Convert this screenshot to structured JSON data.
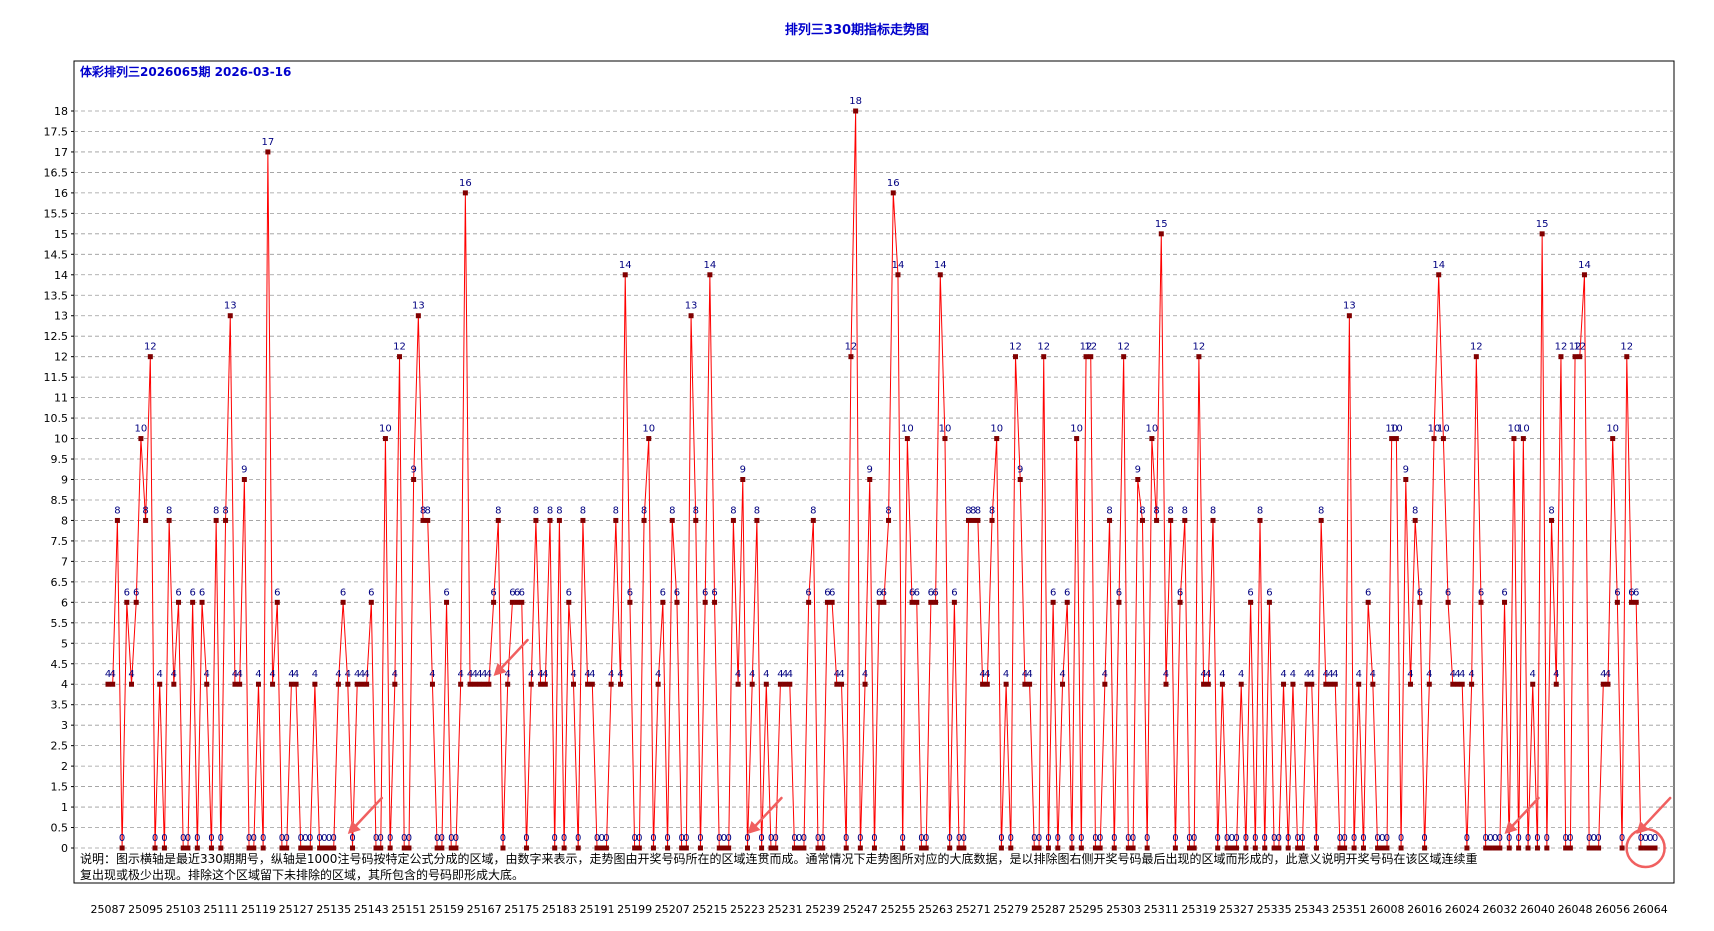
{
  "chart_data": {
    "type": "line",
    "title": "排列三330期指标走势图",
    "subtitle": "体彩排列三2026065期 2026-03-16",
    "note_line1": "说明：图示横轴是最近330期期号，纵轴是1000注号码按特定公式分成的区域，由数字来表示，走势图由开奖号码所在的区域连贯而成。通常情况下走势图所对应的大底数据，是以排除图右侧开奖号码最后出现的区域而形成的，此意义说明开奖号码在该区域连续重",
    "note_line2": "复出现或极少出现。排除这个区域留下未排除的区域，其所包含的号码即形成大底。",
    "ylim": [
      0,
      18
    ],
    "yticks": [
      "0",
      "0.5",
      "1",
      "1.5",
      "2",
      "2.5",
      "3",
      "3.5",
      "4",
      "4.5",
      "5",
      "5.5",
      "6",
      "6.5",
      "7",
      "7.5",
      "8",
      "8.5",
      "9",
      "9.5",
      "10",
      "10.5",
      "11",
      "11.5",
      "12",
      "12.5",
      "13",
      "13.5",
      "14",
      "14.5",
      "15",
      "15.5",
      "16",
      "16.5",
      "17",
      "17.5",
      "18"
    ],
    "x_tick_labels": [
      "25087",
      "25095",
      "25103",
      "25111",
      "25119",
      "25127",
      "25135",
      "25143",
      "25151",
      "25159",
      "25167",
      "25175",
      "25183",
      "25191",
      "25199",
      "25207",
      "25215",
      "25223",
      "25231",
      "25239",
      "25247",
      "25255",
      "25263",
      "25271",
      "25279",
      "25287",
      "25295",
      "25303",
      "25311",
      "25319",
      "25327",
      "25335",
      "25343",
      "25351",
      "26008",
      "26016",
      "26024",
      "26032",
      "26040",
      "26048",
      "26056",
      "26064"
    ],
    "series": [
      {
        "color": "#ff0000",
        "marker_color": "#800000",
        "label_color": "#000080",
        "values": [
          4,
          4,
          8,
          0,
          6,
          4,
          6,
          10,
          8,
          12,
          0,
          4,
          0,
          8,
          4,
          6,
          0,
          0,
          6,
          0,
          6,
          4,
          0,
          8,
          0,
          8,
          13,
          4,
          4,
          9,
          0,
          0,
          4,
          0,
          17,
          4,
          6,
          0,
          0,
          4,
          4,
          0,
          0,
          0,
          4,
          0,
          0,
          0,
          0,
          4,
          6,
          4,
          0,
          4,
          4,
          4,
          6,
          0,
          0,
          10,
          0,
          4,
          12,
          0,
          0,
          9,
          13,
          8,
          8,
          4,
          0,
          0,
          6,
          0,
          0,
          4,
          16,
          4,
          4,
          4,
          4,
          4,
          6,
          8,
          0,
          4,
          6,
          6,
          6,
          0,
          4,
          8,
          4,
          4,
          8,
          0,
          8,
          0,
          6,
          4,
          0,
          8,
          4,
          4,
          0,
          0,
          0,
          4,
          8,
          4,
          14,
          6,
          0,
          0,
          8,
          10,
          0,
          4,
          6,
          0,
          8,
          6,
          0,
          0,
          13,
          8,
          0,
          6,
          14,
          6,
          0,
          0,
          0,
          8,
          4,
          9,
          0,
          4,
          8,
          0,
          4,
          0,
          0,
          4,
          4,
          4,
          0,
          0,
          0,
          6,
          8,
          0,
          0,
          6,
          6,
          4,
          4,
          0,
          12,
          18,
          0,
          4,
          9,
          0,
          6,
          6,
          8,
          16,
          14,
          0,
          10,
          6,
          6,
          0,
          0,
          6,
          6,
          14,
          10,
          0,
          6,
          0,
          0,
          8,
          8,
          8,
          4,
          4,
          8,
          10,
          0,
          4,
          0,
          12,
          9,
          4,
          4,
          0,
          0,
          12,
          0,
          6,
          0,
          4,
          6,
          0,
          10,
          0,
          12,
          12,
          0,
          0,
          4,
          8,
          0,
          6,
          12,
          0,
          0,
          9,
          8,
          0,
          10,
          8,
          15,
          4,
          8,
          0,
          6,
          8,
          0,
          0,
          12,
          4,
          4,
          8,
          0,
          4,
          0,
          0,
          0,
          4,
          0,
          6,
          0,
          8,
          0,
          6,
          0,
          0,
          4,
          0,
          4,
          0,
          0,
          4,
          4,
          0,
          8,
          4,
          4,
          4,
          0,
          0,
          13,
          0,
          4,
          0,
          6,
          4,
          0,
          0,
          0,
          10,
          10,
          0,
          9,
          4,
          8,
          6,
          0,
          4,
          10,
          14,
          10,
          6,
          4,
          4,
          4,
          0,
          4,
          12,
          6,
          0,
          0,
          0,
          0,
          6,
          0,
          10,
          0,
          10,
          0,
          4,
          0,
          15,
          0,
          8,
          4,
          12,
          0,
          0,
          12,
          12,
          14,
          0,
          0,
          0,
          4,
          4,
          10,
          6,
          0,
          12,
          6,
          6,
          0,
          0,
          0,
          0
        ]
      }
    ]
  }
}
